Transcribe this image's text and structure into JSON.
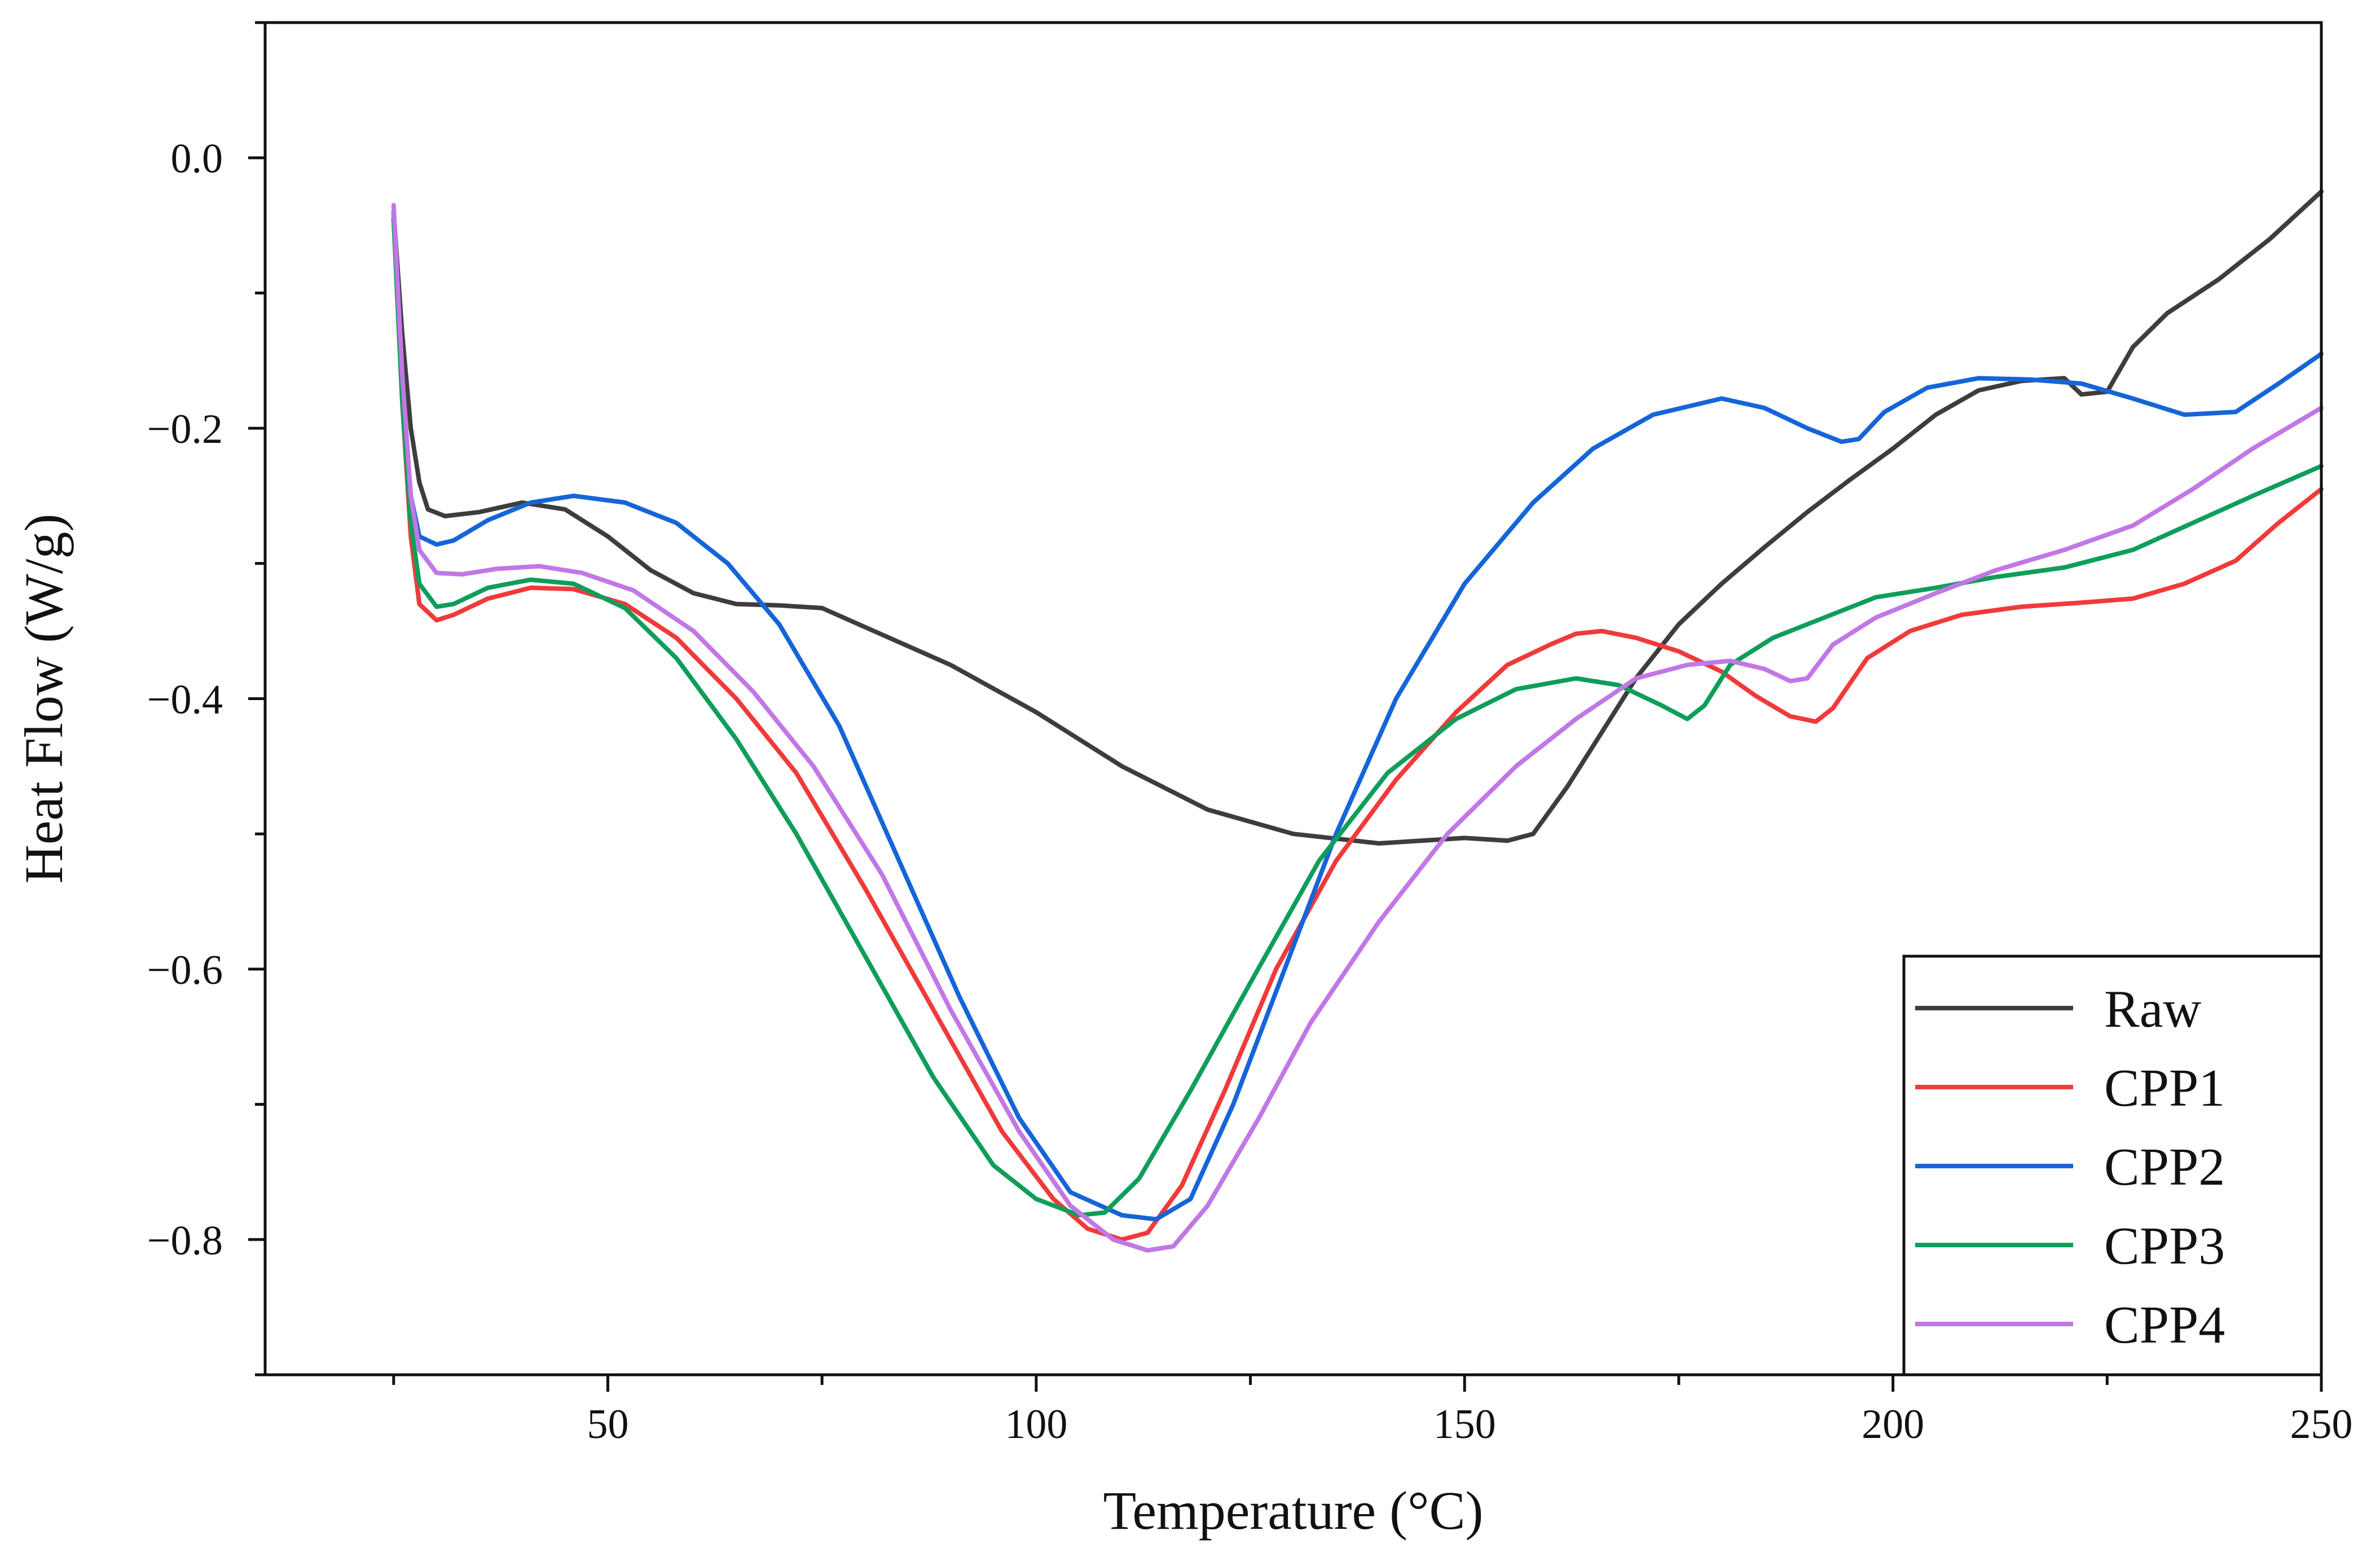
{
  "chart_data": {
    "type": "line",
    "title": "",
    "xlabel": "Temperature (°C)",
    "ylabel": "Heat Flow (W/g)",
    "xlim": [
      10,
      250
    ],
    "ylim": [
      -0.9,
      0.1
    ],
    "xticks": [
      50,
      100,
      150,
      200,
      250
    ],
    "xtick_labels": [
      "50",
      "100",
      "150",
      "200",
      "250"
    ],
    "yticks": [
      0.0,
      -0.2,
      -0.4,
      -0.6,
      -0.8
    ],
    "ytick_labels": [
      "0.0",
      "−0.2",
      "−0.4",
      "−0.6",
      "−0.8"
    ],
    "legend_position": "bottom-right",
    "series": [
      {
        "name": "Raw",
        "color": "#3d3d3d",
        "points": [
          [
            25,
            -0.04
          ],
          [
            26,
            -0.13
          ],
          [
            27,
            -0.2
          ],
          [
            28,
            -0.24
          ],
          [
            29,
            -0.26
          ],
          [
            31,
            -0.265
          ],
          [
            35,
            -0.262
          ],
          [
            40,
            -0.255
          ],
          [
            45,
            -0.26
          ],
          [
            50,
            -0.28
          ],
          [
            55,
            -0.305
          ],
          [
            60,
            -0.322
          ],
          [
            65,
            -0.33
          ],
          [
            70,
            -0.331
          ],
          [
            75,
            -0.333
          ],
          [
            80,
            -0.347
          ],
          [
            90,
            -0.375
          ],
          [
            100,
            -0.41
          ],
          [
            110,
            -0.45
          ],
          [
            120,
            -0.482
          ],
          [
            130,
            -0.5
          ],
          [
            140,
            -0.507
          ],
          [
            150,
            -0.503
          ],
          [
            155,
            -0.505
          ],
          [
            158,
            -0.5
          ],
          [
            162,
            -0.465
          ],
          [
            166,
            -0.425
          ],
          [
            170,
            -0.385
          ],
          [
            175,
            -0.345
          ],
          [
            180,
            -0.315
          ],
          [
            185,
            -0.288
          ],
          [
            190,
            -0.262
          ],
          [
            195,
            -0.238
          ],
          [
            200,
            -0.215
          ],
          [
            205,
            -0.19
          ],
          [
            210,
            -0.172
          ],
          [
            215,
            -0.165
          ],
          [
            220,
            -0.163
          ],
          [
            222,
            -0.175
          ],
          [
            225,
            -0.173
          ],
          [
            228,
            -0.14
          ],
          [
            232,
            -0.115
          ],
          [
            238,
            -0.09
          ],
          [
            244,
            -0.06
          ],
          [
            250,
            -0.025
          ]
        ]
      },
      {
        "name": "CPP1",
        "color": "#f03a3a",
        "points": [
          [
            25,
            -0.045
          ],
          [
            26,
            -0.18
          ],
          [
            27,
            -0.28
          ],
          [
            28,
            -0.33
          ],
          [
            30,
            -0.342
          ],
          [
            32,
            -0.338
          ],
          [
            36,
            -0.326
          ],
          [
            41,
            -0.318
          ],
          [
            46,
            -0.319
          ],
          [
            52,
            -0.33
          ],
          [
            58,
            -0.355
          ],
          [
            65,
            -0.4
          ],
          [
            72,
            -0.455
          ],
          [
            80,
            -0.54
          ],
          [
            88,
            -0.63
          ],
          [
            96,
            -0.72
          ],
          [
            102,
            -0.77
          ],
          [
            106,
            -0.792
          ],
          [
            110,
            -0.8
          ],
          [
            113,
            -0.795
          ],
          [
            117,
            -0.76
          ],
          [
            122,
            -0.69
          ],
          [
            128,
            -0.6
          ],
          [
            135,
            -0.52
          ],
          [
            142,
            -0.46
          ],
          [
            149,
            -0.41
          ],
          [
            155,
            -0.375
          ],
          [
            160,
            -0.36
          ],
          [
            163,
            -0.352
          ],
          [
            166,
            -0.35
          ],
          [
            170,
            -0.355
          ],
          [
            175,
            -0.365
          ],
          [
            180,
            -0.38
          ],
          [
            184,
            -0.398
          ],
          [
            188,
            -0.413
          ],
          [
            191,
            -0.417
          ],
          [
            193,
            -0.407
          ],
          [
            197,
            -0.37
          ],
          [
            202,
            -0.35
          ],
          [
            208,
            -0.338
          ],
          [
            215,
            -0.332
          ],
          [
            222,
            -0.329
          ],
          [
            228,
            -0.326
          ],
          [
            234,
            -0.315
          ],
          [
            240,
            -0.298
          ],
          [
            245,
            -0.27
          ],
          [
            250,
            -0.245
          ]
        ]
      },
      {
        "name": "CPP2",
        "color": "#1565d8",
        "points": [
          [
            25,
            -0.045
          ],
          [
            26,
            -0.17
          ],
          [
            27,
            -0.25
          ],
          [
            28,
            -0.28
          ],
          [
            30,
            -0.286
          ],
          [
            32,
            -0.283
          ],
          [
            36,
            -0.268
          ],
          [
            41,
            -0.255
          ],
          [
            46,
            -0.25
          ],
          [
            52,
            -0.255
          ],
          [
            58,
            -0.27
          ],
          [
            64,
            -0.3
          ],
          [
            70,
            -0.345
          ],
          [
            77,
            -0.42
          ],
          [
            84,
            -0.52
          ],
          [
            91,
            -0.62
          ],
          [
            98,
            -0.71
          ],
          [
            104,
            -0.765
          ],
          [
            110,
            -0.782
          ],
          [
            114,
            -0.785
          ],
          [
            118,
            -0.77
          ],
          [
            123,
            -0.7
          ],
          [
            129,
            -0.6
          ],
          [
            135,
            -0.5
          ],
          [
            142,
            -0.4
          ],
          [
            150,
            -0.315
          ],
          [
            158,
            -0.255
          ],
          [
            165,
            -0.215
          ],
          [
            172,
            -0.19
          ],
          [
            180,
            -0.178
          ],
          [
            185,
            -0.185
          ],
          [
            190,
            -0.2
          ],
          [
            194,
            -0.21
          ],
          [
            196,
            -0.208
          ],
          [
            199,
            -0.188
          ],
          [
            204,
            -0.17
          ],
          [
            210,
            -0.163
          ],
          [
            216,
            -0.164
          ],
          [
            222,
            -0.167
          ],
          [
            228,
            -0.178
          ],
          [
            234,
            -0.19
          ],
          [
            240,
            -0.188
          ],
          [
            245,
            -0.167
          ],
          [
            250,
            -0.145
          ]
        ]
      },
      {
        "name": "CPP3",
        "color": "#0e9e5a",
        "points": [
          [
            25,
            -0.045
          ],
          [
            26,
            -0.18
          ],
          [
            27,
            -0.27
          ],
          [
            28,
            -0.315
          ],
          [
            30,
            -0.332
          ],
          [
            32,
            -0.33
          ],
          [
            36,
            -0.318
          ],
          [
            41,
            -0.312
          ],
          [
            46,
            -0.315
          ],
          [
            52,
            -0.333
          ],
          [
            58,
            -0.37
          ],
          [
            65,
            -0.43
          ],
          [
            72,
            -0.5
          ],
          [
            80,
            -0.59
          ],
          [
            88,
            -0.68
          ],
          [
            95,
            -0.745
          ],
          [
            100,
            -0.77
          ],
          [
            105,
            -0.782
          ],
          [
            108,
            -0.78
          ],
          [
            112,
            -0.755
          ],
          [
            118,
            -0.69
          ],
          [
            125,
            -0.61
          ],
          [
            133,
            -0.52
          ],
          [
            141,
            -0.455
          ],
          [
            149,
            -0.415
          ],
          [
            156,
            -0.393
          ],
          [
            163,
            -0.385
          ],
          [
            168,
            -0.39
          ],
          [
            173,
            -0.405
          ],
          [
            176,
            -0.415
          ],
          [
            178,
            -0.405
          ],
          [
            181,
            -0.375
          ],
          [
            186,
            -0.355
          ],
          [
            192,
            -0.34
          ],
          [
            198,
            -0.325
          ],
          [
            205,
            -0.318
          ],
          [
            212,
            -0.31
          ],
          [
            220,
            -0.303
          ],
          [
            228,
            -0.29
          ],
          [
            235,
            -0.27
          ],
          [
            242,
            -0.25
          ],
          [
            250,
            -0.228
          ]
        ]
      },
      {
        "name": "CPP4",
        "color": "#c177e6",
        "points": [
          [
            25,
            -0.035
          ],
          [
            26,
            -0.16
          ],
          [
            27,
            -0.25
          ],
          [
            28,
            -0.29
          ],
          [
            30,
            -0.307
          ],
          [
            33,
            -0.308
          ],
          [
            37,
            -0.304
          ],
          [
            42,
            -0.302
          ],
          [
            47,
            -0.307
          ],
          [
            53,
            -0.32
          ],
          [
            60,
            -0.35
          ],
          [
            67,
            -0.395
          ],
          [
            74,
            -0.45
          ],
          [
            82,
            -0.53
          ],
          [
            90,
            -0.63
          ],
          [
            98,
            -0.72
          ],
          [
            104,
            -0.775
          ],
          [
            109,
            -0.8
          ],
          [
            113,
            -0.808
          ],
          [
            116,
            -0.805
          ],
          [
            120,
            -0.775
          ],
          [
            126,
            -0.71
          ],
          [
            132,
            -0.64
          ],
          [
            140,
            -0.565
          ],
          [
            148,
            -0.5
          ],
          [
            156,
            -0.45
          ],
          [
            163,
            -0.415
          ],
          [
            170,
            -0.385
          ],
          [
            176,
            -0.375
          ],
          [
            181,
            -0.372
          ],
          [
            185,
            -0.378
          ],
          [
            188,
            -0.387
          ],
          [
            190,
            -0.385
          ],
          [
            193,
            -0.36
          ],
          [
            198,
            -0.34
          ],
          [
            205,
            -0.322
          ],
          [
            212,
            -0.305
          ],
          [
            220,
            -0.29
          ],
          [
            228,
            -0.272
          ],
          [
            235,
            -0.245
          ],
          [
            242,
            -0.215
          ],
          [
            250,
            -0.185
          ]
        ]
      }
    ]
  }
}
